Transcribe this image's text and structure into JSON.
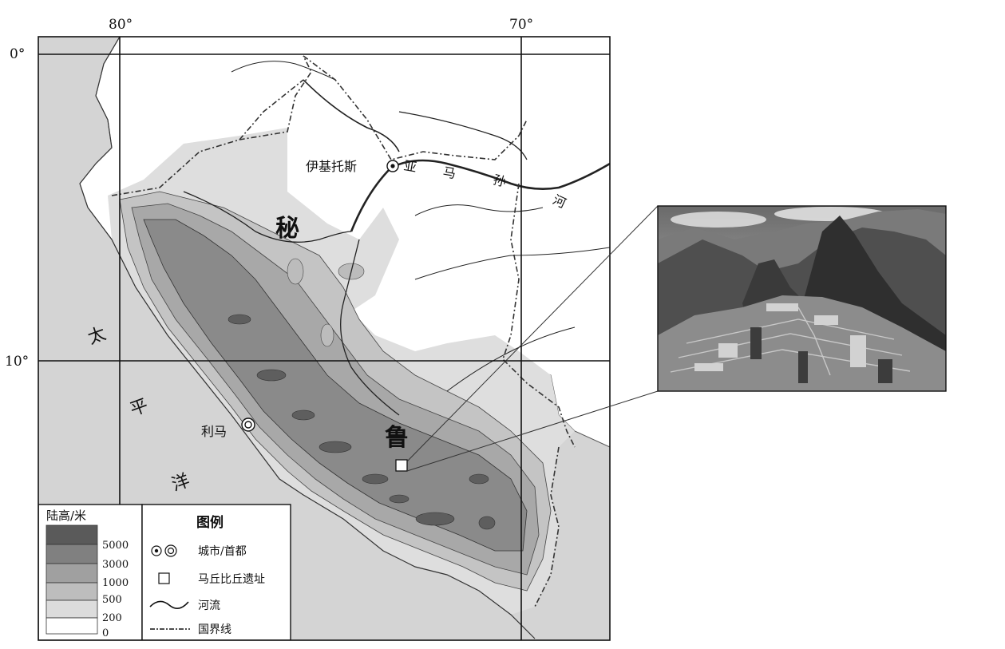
{
  "map": {
    "lon_labels": [
      "80°",
      "70°"
    ],
    "lat_labels": [
      "0°",
      "10°"
    ],
    "country_chars": [
      "秘",
      "鲁"
    ],
    "ocean_chars": [
      "太",
      "平",
      "洋"
    ],
    "river_chars": [
      "亚",
      "马",
      "孙",
      "河"
    ],
    "cities": {
      "iquitos": "伊基托斯",
      "lima": "利马"
    }
  },
  "elevation_legend": {
    "title": "陆高/米",
    "ticks": [
      "5000",
      "3000",
      "1000",
      "500",
      "200",
      "0"
    ],
    "colors": [
      "#5a5a5a",
      "#808080",
      "#a0a0a0",
      "#bdbdbd",
      "#dcdcdc",
      "#ffffff"
    ]
  },
  "symbol_legend": {
    "title": "图例",
    "items": [
      {
        "icon": "city-capital-icon",
        "label": "城市/首都"
      },
      {
        "icon": "ruins-square-icon",
        "label": "马丘比丘遗址"
      },
      {
        "icon": "river-line-icon",
        "label": "河流"
      },
      {
        "icon": "border-dashdot-icon",
        "label": "国界线"
      }
    ]
  },
  "photo": {
    "subject": "machu-picchu-photo"
  }
}
